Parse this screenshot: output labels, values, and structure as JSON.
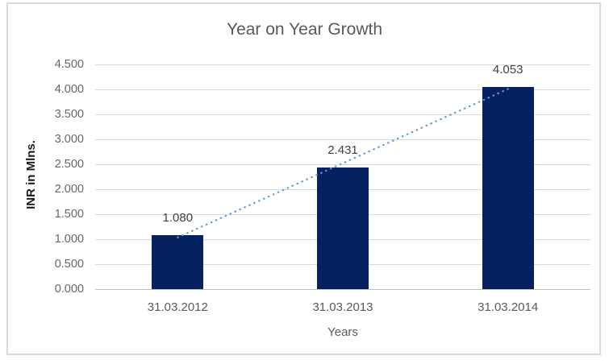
{
  "chart_data": {
    "type": "bar",
    "title": "Year on Year Growth",
    "categories": [
      "31.03.2012",
      "31.03.2013",
      "31.03.2014"
    ],
    "values": [
      1.08,
      2.431,
      4.053
    ],
    "data_labels": [
      "1.080",
      "2.431",
      "4.053"
    ],
    "xlabel": "Years",
    "ylabel": "INR in Mlns.",
    "ylim": [
      0,
      4.5
    ],
    "y_tick_step": 0.5,
    "y_tick_labels": [
      "0.000",
      "0.500",
      "1.000",
      "1.500",
      "2.000",
      "2.500",
      "3.000",
      "3.500",
      "4.000",
      "4.500"
    ],
    "grid": true,
    "legend": "none",
    "trendline": {
      "type": "linear",
      "style": "dotted",
      "color": "#5B9BD5"
    },
    "colors": {
      "bar": "#06215F",
      "gridline": "#D9D9D9",
      "axis_line": "#BFBFBF",
      "frame_border": "#D9D9D9",
      "title_text": "#595959",
      "tick_text": "#666666",
      "data_label_text": "#404040"
    }
  }
}
